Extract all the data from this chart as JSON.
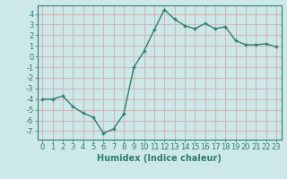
{
  "x": [
    0,
    1,
    2,
    3,
    4,
    5,
    6,
    7,
    8,
    9,
    10,
    11,
    12,
    13,
    14,
    15,
    16,
    17,
    18,
    19,
    20,
    21,
    22,
    23
  ],
  "y": [
    -4.0,
    -4.0,
    -3.7,
    -4.7,
    -5.3,
    -5.7,
    -7.2,
    -6.8,
    -5.4,
    -1.0,
    0.5,
    2.5,
    4.4,
    3.5,
    2.9,
    2.6,
    3.1,
    2.6,
    2.8,
    1.5,
    1.1,
    1.1,
    1.2,
    0.9
  ],
  "xlabel": "Humidex (Indice chaleur)",
  "ylim": [
    -7.8,
    4.8
  ],
  "xlim": [
    -0.5,
    23.5
  ],
  "yticks": [
    -7,
    -6,
    -5,
    -4,
    -3,
    -2,
    -1,
    0,
    1,
    2,
    3,
    4
  ],
  "xticks": [
    0,
    1,
    2,
    3,
    4,
    5,
    6,
    7,
    8,
    9,
    10,
    11,
    12,
    13,
    14,
    15,
    16,
    17,
    18,
    19,
    20,
    21,
    22,
    23
  ],
  "line_color": "#2e7d6e",
  "marker": "+",
  "bg_color": "#cce8e8",
  "grid_color": "#d4b8b8",
  "tick_label_fontsize": 6,
  "xlabel_fontsize": 7
}
